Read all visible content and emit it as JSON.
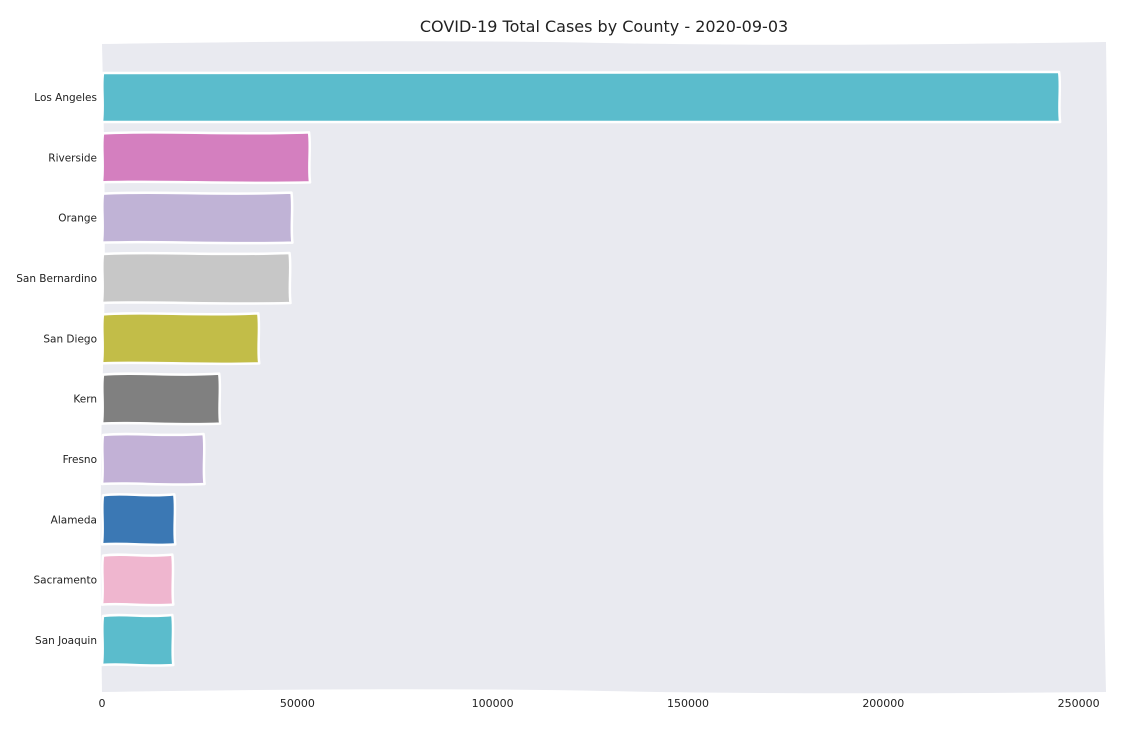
{
  "chart_data": {
    "type": "bar",
    "orientation": "horizontal",
    "title": "COVID-19 Total Cases by County - 2020-09-03",
    "xlabel": "",
    "ylabel": "",
    "xlim": [
      0,
      257000
    ],
    "xticks": [
      0,
      50000,
      100000,
      150000,
      200000,
      250000
    ],
    "xtick_labels": [
      "0",
      "50000",
      "100000",
      "150000",
      "200000",
      "250000"
    ],
    "grid": false,
    "categories": [
      "Los Angeles",
      "Riverside",
      "Orange",
      "San Bernardino",
      "San Diego",
      "Kern",
      "Fresno",
      "Alameda",
      "Sacramento",
      "San Joaquin"
    ],
    "values": [
      245000,
      53000,
      48500,
      48000,
      40000,
      30000,
      26000,
      18500,
      18000,
      18000
    ],
    "colors": [
      "#5bbccc",
      "#d47fbf",
      "#c0b3d6",
      "#c7c7c7",
      "#c2bd48",
      "#808080",
      "#c2b1d6",
      "#3b78b4",
      "#efb6cf",
      "#5bbccc"
    ]
  }
}
